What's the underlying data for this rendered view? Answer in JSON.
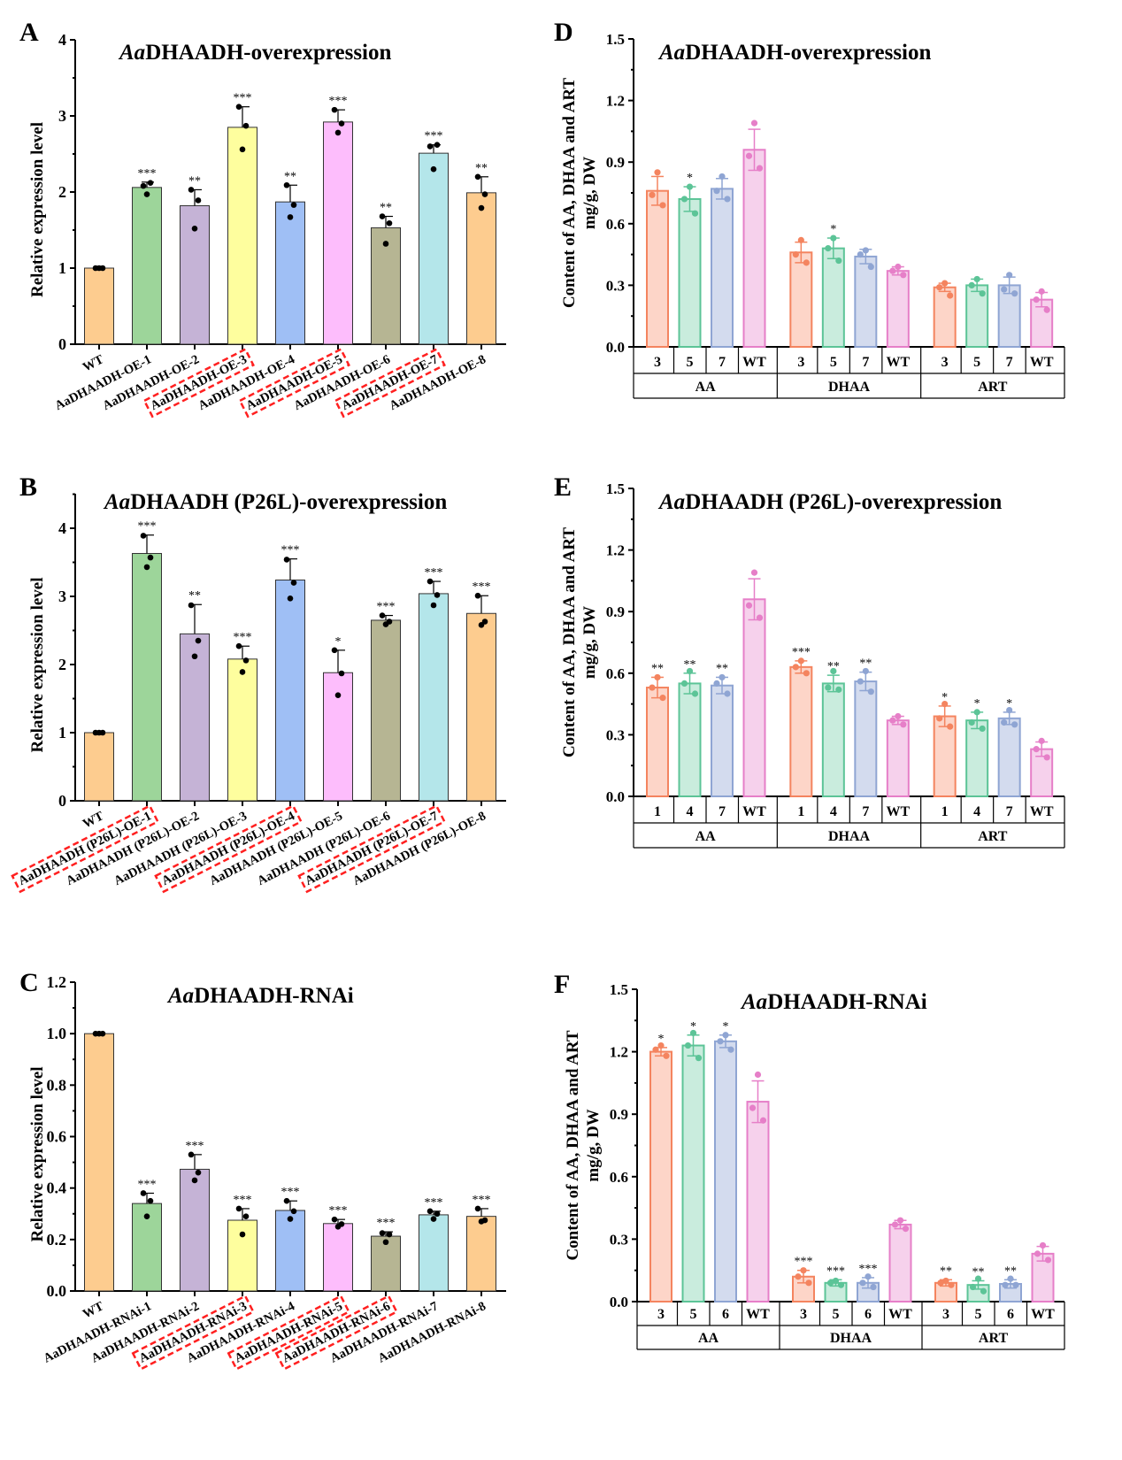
{
  "left_colors": [
    "#fdcc8f",
    "#9dd59a",
    "#c5b3d6",
    "#fefe9e",
    "#9fbff5",
    "#fdbdfc",
    "#b6b593",
    "#b4e6ea",
    "#fdcc8f"
  ],
  "box_color": "#ff2020",
  "right_colors": {
    "fill": [
      "#fdd5c8",
      "#c9ecdd",
      "#d3dbee",
      "#f6d1ec"
    ],
    "stroke": [
      "#f4845f",
      "#5cc497",
      "#8fa5d3",
      "#e67fc8"
    ]
  },
  "chart_data": [
    {
      "panel": "A",
      "type": "bar",
      "title_italic": "Aa",
      "title_rest": "DHAADH-overexpression",
      "ylabel": "Relative expression level",
      "ylim": [
        0,
        4
      ],
      "yticks": [
        "0",
        "1",
        "2",
        "3",
        "4"
      ],
      "categories": [
        "WT",
        "AaDHAADH-OE-1",
        "AaDHAADH-OE-2",
        "AaDHAADH-OE-3",
        "AaDHAADH-OE-4",
        "AaDHAADH-OE-5",
        "AaDHAADH-OE-6",
        "AaDHAADH-OE-7",
        "AaDHAADH-OE-8"
      ],
      "values": [
        1,
        2.06,
        1.82,
        2.85,
        1.87,
        2.92,
        1.53,
        2.51,
        1.99
      ],
      "error_top": [
        1,
        2.13,
        2.03,
        3.12,
        2.09,
        3.08,
        1.68,
        2.62,
        2.2
      ],
      "points": [
        [
          1,
          1,
          1
        ],
        [
          2.08,
          2.12,
          1.97
        ],
        [
          2.03,
          1.89,
          1.52
        ],
        [
          3.12,
          2.87,
          2.56
        ],
        [
          2.09,
          1.83,
          1.67
        ],
        [
          3.08,
          2.9,
          2.78
        ],
        [
          1.68,
          1.59,
          1.32
        ],
        [
          2.6,
          2.62,
          2.3
        ],
        [
          2.2,
          1.97,
          1.79
        ]
      ],
      "significance": [
        "",
        "***",
        "**",
        "***",
        "**",
        "***",
        "**",
        "***",
        "**"
      ],
      "highlighted": [
        3,
        5,
        7
      ]
    },
    {
      "panel": "B",
      "type": "bar",
      "title_italic": "Aa",
      "title_rest": "DHAADH (P26L)-overexpression",
      "ylabel": "Relative expression level",
      "ylim": [
        0,
        4.5
      ],
      "yticks": [
        "0",
        "1",
        "2",
        "3",
        "4"
      ],
      "categories": [
        "WT",
        "AaDHAADH (P26L)-OE-1",
        "AaDHAADH (P26L)-OE-2",
        "AaDHAADH (P26L)-OE-3",
        "AaDHAADH (P26L)-OE-4",
        "AaDHAADH (P26L)-OE-5",
        "AaDHAADH (P26L)-OE-6",
        "AaDHAADH (P26L)-OE-7",
        "AaDHAADH (P26L)-OE-8"
      ],
      "values": [
        1,
        3.63,
        2.45,
        2.08,
        3.24,
        1.88,
        2.65,
        3.04,
        2.75
      ],
      "error_top": [
        1,
        3.9,
        2.88,
        2.27,
        3.55,
        2.21,
        2.72,
        3.22,
        3.01
      ],
      "points": [
        [
          1,
          1,
          1
        ],
        [
          3.89,
          3.57,
          3.43
        ],
        [
          2.87,
          2.35,
          2.12
        ],
        [
          2.27,
          2.06,
          1.89
        ],
        [
          3.54,
          3.2,
          2.97
        ],
        [
          2.21,
          1.87,
          1.55
        ],
        [
          2.72,
          2.63,
          2.59
        ],
        [
          3.22,
          3.02,
          2.87
        ],
        [
          3.01,
          2.63,
          2.58
        ]
      ],
      "significance": [
        "",
        "***",
        "**",
        "***",
        "***",
        "*",
        "***",
        "***",
        "***"
      ],
      "highlighted": [
        1,
        4,
        7
      ]
    },
    {
      "panel": "C",
      "type": "bar",
      "title_italic": "Aa",
      "title_rest": "DHAADH-RNAi",
      "ylabel": "Relative expression level",
      "ylim": [
        0,
        1.2
      ],
      "yticks": [
        "0.0",
        "0.2",
        "0.4",
        "0.6",
        "0.8",
        "1.0",
        "1.2"
      ],
      "categories": [
        "WT",
        "AaDHAADH-RNAi-1",
        "AaDHAADH-RNAi-2",
        "AaDHAADH-RNAi-3",
        "AaDHAADH-RNAi-4",
        "AaDHAADH-RNAi-5",
        "AaDHAADH-RNAi-6",
        "AaDHAADH-RNAi-7",
        "AaDHAADH-RNAi-8"
      ],
      "values": [
        1,
        0.34,
        0.473,
        0.275,
        0.313,
        0.262,
        0.213,
        0.296,
        0.29
      ],
      "error_top": [
        1,
        0.38,
        0.53,
        0.32,
        0.35,
        0.278,
        0.23,
        0.31,
        0.32
      ],
      "points": [
        [
          1,
          1,
          1
        ],
        [
          0.38,
          0.35,
          0.29
        ],
        [
          0.53,
          0.46,
          0.43
        ],
        [
          0.32,
          0.29,
          0.22
        ],
        [
          0.35,
          0.31,
          0.28
        ],
        [
          0.278,
          0.26,
          0.25
        ],
        [
          0.225,
          0.22,
          0.19
        ],
        [
          0.31,
          0.3,
          0.28
        ],
        [
          0.32,
          0.275,
          0.27
        ]
      ],
      "significance": [
        "",
        "***",
        "***",
        "***",
        "***",
        "***",
        "***",
        "***",
        "***"
      ],
      "highlighted": [
        3,
        5,
        6
      ]
    },
    {
      "panel": "D",
      "type": "bar",
      "title_italic": "Aa",
      "title_rest": "DHAADH-overexpression",
      "ylabel": "Content of AA, DHAA and ART",
      "ylabel2": "mg/g, DW",
      "ylim": [
        0,
        1.5
      ],
      "yticks": [
        "0.0",
        "0.3",
        "0.6",
        "0.9",
        "1.2",
        "1.5"
      ],
      "groups": [
        {
          "name": "AA",
          "labels": [
            "3",
            "5",
            "7",
            "WT"
          ],
          "values": [
            0.76,
            0.72,
            0.77,
            0.96
          ],
          "sd": [
            0.07,
            0.06,
            0.05,
            0.1
          ],
          "points": [
            [
              0.85,
              0.74,
              0.69
            ],
            [
              0.78,
              0.72,
              0.65
            ],
            [
              0.83,
              0.76,
              0.72
            ],
            [
              1.09,
              0.93,
              0.87
            ]
          ],
          "significance": [
            "",
            "*",
            "",
            ""
          ]
        },
        {
          "name": "DHAA",
          "labels": [
            "3",
            "5",
            "7",
            "WT"
          ],
          "values": [
            0.46,
            0.48,
            0.44,
            0.37
          ],
          "sd": [
            0.05,
            0.05,
            0.035,
            0.02
          ],
          "points": [
            [
              0.52,
              0.45,
              0.41
            ],
            [
              0.53,
              0.48,
              0.42
            ],
            [
              0.47,
              0.45,
              0.39
            ],
            [
              0.39,
              0.37,
              0.35
            ]
          ],
          "significance": [
            "",
            "*",
            "",
            ""
          ]
        },
        {
          "name": "ART",
          "labels": [
            "3",
            "5",
            "7",
            "WT"
          ],
          "values": [
            0.29,
            0.3,
            0.3,
            0.23
          ],
          "sd": [
            0.02,
            0.03,
            0.04,
            0.035
          ],
          "points": [
            [
              0.31,
              0.29,
              0.25
            ],
            [
              0.33,
              0.3,
              0.26
            ],
            [
              0.35,
              0.28,
              0.26
            ],
            [
              0.27,
              0.23,
              0.18
            ]
          ],
          "significance": [
            "",
            "",
            "",
            ""
          ]
        }
      ]
    },
    {
      "panel": "E",
      "type": "bar",
      "title_italic": "Aa",
      "title_rest": "DHAADH (P26L)-overexpression",
      "ylabel": "Content of AA, DHAA and ART",
      "ylabel2": "mg/g, DW",
      "ylim": [
        0,
        1.5
      ],
      "yticks": [
        "0.0",
        "0.3",
        "0.6",
        "0.9",
        "1.2",
        "1.5"
      ],
      "groups": [
        {
          "name": "AA",
          "labels": [
            "1",
            "4",
            "7",
            "WT"
          ],
          "values": [
            0.53,
            0.55,
            0.54,
            0.96
          ],
          "sd": [
            0.05,
            0.05,
            0.04,
            0.1
          ],
          "points": [
            [
              0.58,
              0.53,
              0.48
            ],
            [
              0.61,
              0.55,
              0.5
            ],
            [
              0.58,
              0.55,
              0.5
            ],
            [
              1.09,
              0.93,
              0.87
            ]
          ],
          "significance": [
            "**",
            "**",
            "**",
            ""
          ]
        },
        {
          "name": "DHAA",
          "labels": [
            "1",
            "4",
            "7",
            "WT"
          ],
          "values": [
            0.63,
            0.55,
            0.56,
            0.37
          ],
          "sd": [
            0.03,
            0.04,
            0.045,
            0.02
          ],
          "points": [
            [
              0.66,
              0.63,
              0.6
            ],
            [
              0.61,
              0.53,
              0.52
            ],
            [
              0.61,
              0.56,
              0.51
            ],
            [
              0.39,
              0.37,
              0.35
            ]
          ],
          "significance": [
            "***",
            "**",
            "**",
            ""
          ]
        },
        {
          "name": "ART",
          "labels": [
            "1",
            "4",
            "7",
            "WT"
          ],
          "values": [
            0.39,
            0.37,
            0.38,
            0.23
          ],
          "sd": [
            0.05,
            0.04,
            0.03,
            0.035
          ],
          "points": [
            [
              0.45,
              0.38,
              0.34
            ],
            [
              0.41,
              0.36,
              0.33
            ],
            [
              0.42,
              0.36,
              0.35
            ],
            [
              0.27,
              0.23,
              0.19
            ]
          ],
          "significance": [
            "*",
            "*",
            "*",
            ""
          ]
        }
      ]
    },
    {
      "panel": "F",
      "type": "bar",
      "title_italic": "Aa",
      "title_rest": "DHAADH-RNAi",
      "ylabel": "Content of AA, DHAA and ART",
      "ylabel2": "mg/g, DW",
      "ylim": [
        0,
        1.5
      ],
      "yticks": [
        "0.0",
        "0.3",
        "0.6",
        "0.9",
        "1.2",
        "1.5"
      ],
      "groups": [
        {
          "name": "AA",
          "labels": [
            "3",
            "5",
            "6",
            "WT"
          ],
          "values": [
            1.2,
            1.23,
            1.25,
            0.96
          ],
          "sd": [
            0.02,
            0.05,
            0.03,
            0.1
          ],
          "points": [
            [
              1.23,
              1.21,
              1.18
            ],
            [
              1.29,
              1.23,
              1.17
            ],
            [
              1.28,
              1.25,
              1.21
            ],
            [
              1.09,
              0.93,
              0.87
            ]
          ],
          "significance": [
            "*",
            "*",
            "*",
            ""
          ]
        },
        {
          "name": "DHAA",
          "labels": [
            "3",
            "5",
            "6",
            "WT"
          ],
          "values": [
            0.12,
            0.09,
            0.09,
            0.37
          ],
          "sd": [
            0.03,
            0.015,
            0.025,
            0.02
          ],
          "points": [
            [
              0.15,
              0.12,
              0.09
            ],
            [
              0.1,
              0.09,
              0.08
            ],
            [
              0.12,
              0.09,
              0.07
            ],
            [
              0.39,
              0.37,
              0.35
            ]
          ],
          "significance": [
            "***",
            "***",
            "***",
            ""
          ]
        },
        {
          "name": "ART",
          "labels": [
            "3",
            "5",
            "6",
            "WT"
          ],
          "values": [
            0.09,
            0.08,
            0.085,
            0.23
          ],
          "sd": [
            0.015,
            0.02,
            0.02,
            0.035
          ],
          "points": [
            [
              0.1,
              0.09,
              0.08
            ],
            [
              0.11,
              0.07,
              0.05
            ],
            [
              0.11,
              0.08,
              0.08
            ],
            [
              0.27,
              0.23,
              0.2
            ]
          ],
          "significance": [
            "**",
            "**",
            "**",
            ""
          ]
        }
      ]
    }
  ]
}
